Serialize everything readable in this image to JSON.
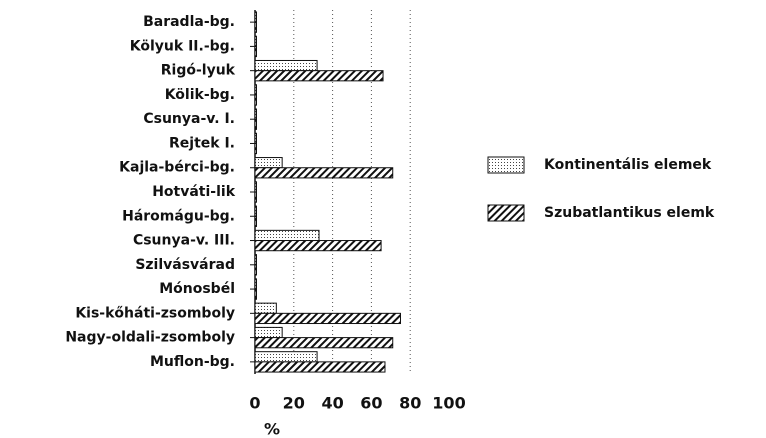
{
  "chart_data": {
    "type": "hbar",
    "categories": [
      "Baradla-bg.",
      "Kölyuk II.-bg.",
      "Rigó-lyuk",
      "Kölik-bg.",
      "Csunya-v. I.",
      "Rejtek I.",
      "Kajla-bérci-bg.",
      "Hotváti-lik",
      "Háromágu-bg.",
      "Csunya-v. III.",
      "Szilvásvárad",
      "Mónosbél",
      "Kis-kőháti-zsomboly",
      "Nagy-oldali-zsomboly",
      "Muflon-bg."
    ],
    "series": [
      {
        "name": "Kontinentális elemek",
        "pattern": "dots",
        "values": [
          0,
          0,
          32,
          0,
          0,
          0,
          14,
          0,
          0,
          33,
          0,
          0,
          11,
          14,
          32
        ]
      },
      {
        "name": "Szubatlantikus elemk",
        "pattern": "hatch",
        "values": [
          0,
          0,
          66,
          0,
          0,
          0,
          71,
          0,
          0,
          65,
          0,
          0,
          75,
          71,
          67
        ]
      }
    ],
    "xlabel": "%",
    "xlim": [
      0,
      100
    ],
    "xticks": [
      0,
      20,
      40,
      60,
      80,
      100
    ],
    "grid": true,
    "legend": "right"
  }
}
